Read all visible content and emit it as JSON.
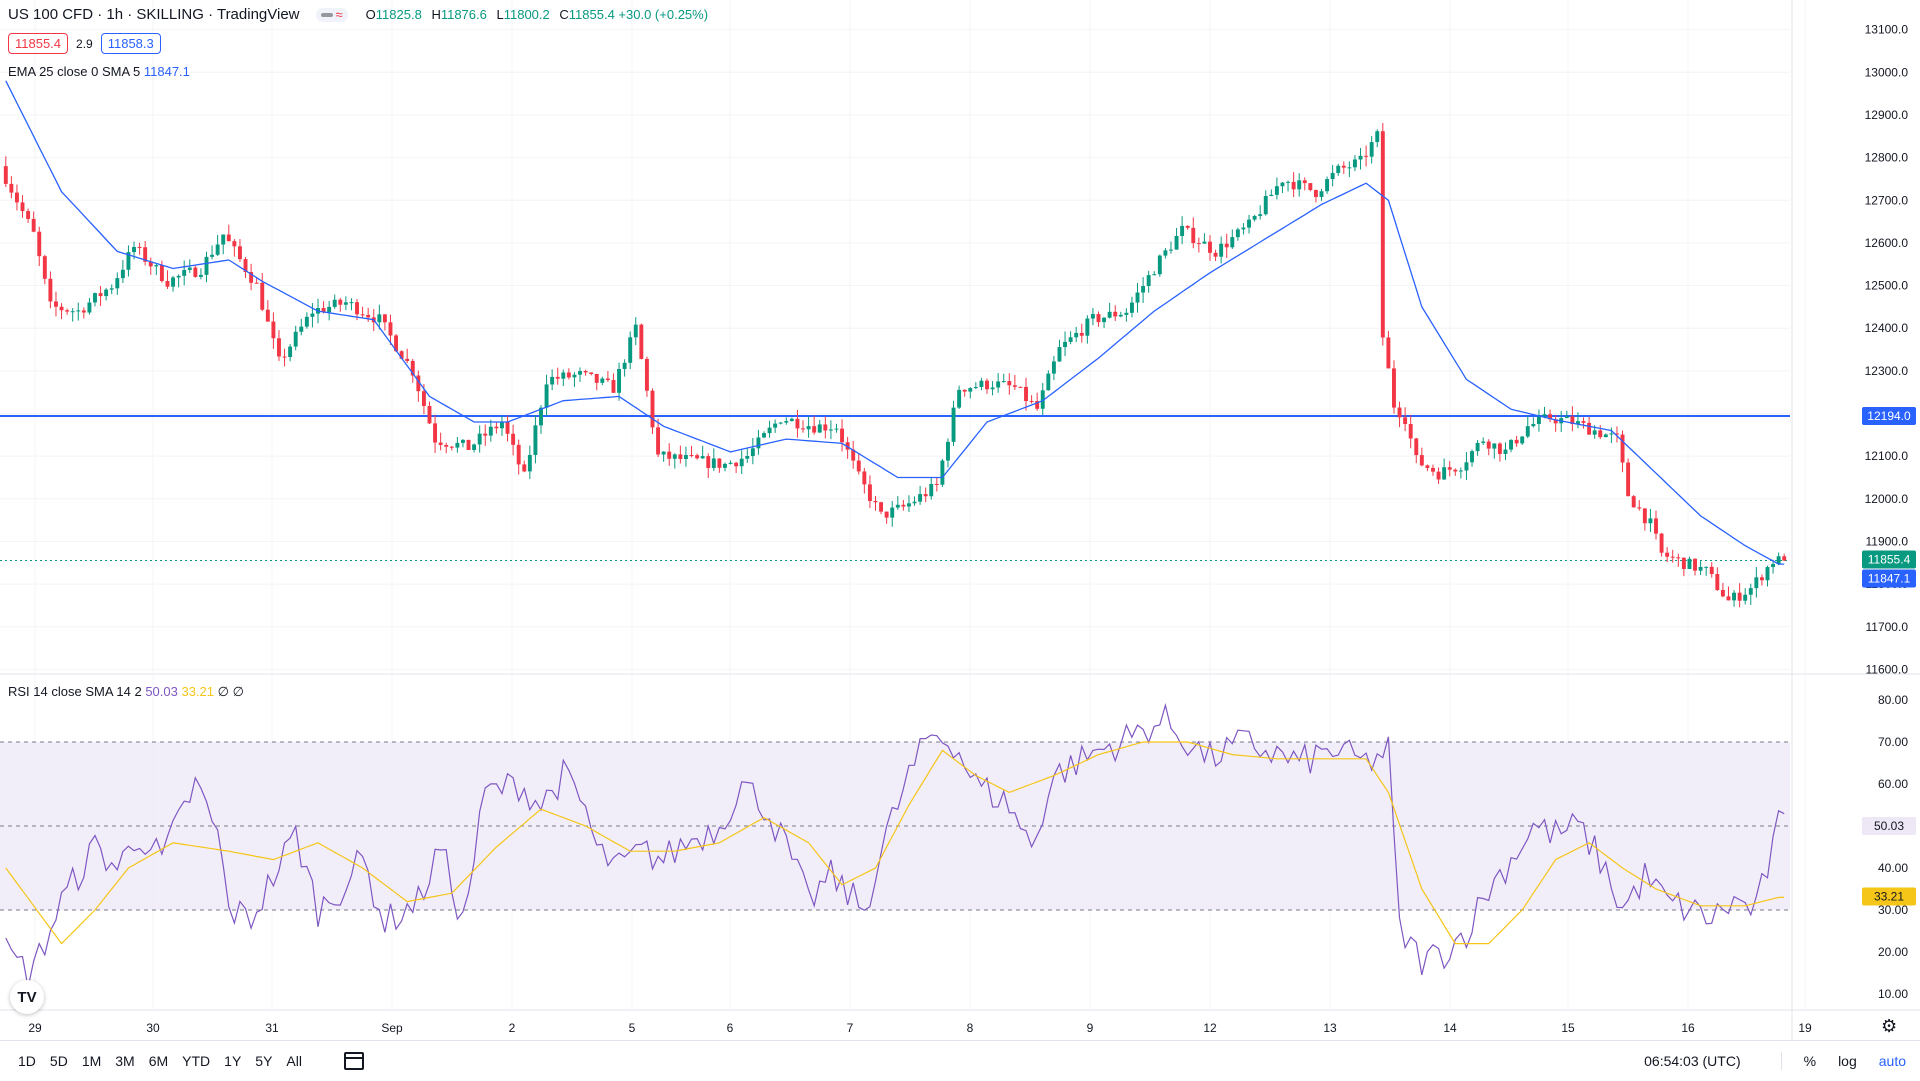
{
  "header": {
    "symbol": "US 100 CFD · 1h · SKILLING · TradingView",
    "pill_icon": "wave-icon",
    "pill_text": "≈",
    "ohlc": {
      "o_label": "O",
      "o": "11825.8",
      "h_label": "H",
      "h": "11876.6",
      "l_label": "L",
      "l": "11800.2",
      "c_label": "C",
      "c": "11855.4",
      "change": "+30.0 (+0.25%)"
    },
    "bid": "11855.4",
    "spread": "2.9",
    "ask": "11858.3"
  },
  "ema_legend": {
    "label": "EMA 25 close 0 SMA 5",
    "value": "11847.1"
  },
  "rsi_legend": {
    "label": "RSI 14 close SMA 14 2",
    "rsi_value": "50.03",
    "sma_value": "33.21",
    "extra1": "∅",
    "extra2": "∅"
  },
  "price_axis_labels": [
    "13100.0",
    "13000.0",
    "12900.0",
    "12800.0",
    "12700.0",
    "12600.0",
    "12500.0",
    "12400.0",
    "12300.0",
    "12200.0",
    "12100.0",
    "12000.0",
    "11900.0",
    "11800.0",
    "11700.0",
    "11600.0"
  ],
  "rsi_axis_labels": [
    "80.00",
    "70.00",
    "60.00",
    "50.00",
    "40.00",
    "30.00",
    "20.00",
    "10.00"
  ],
  "time_axis_labels": [
    "29",
    "30",
    "31",
    "Sep",
    "2",
    "5",
    "6",
    "7",
    "8",
    "9",
    "12",
    "13",
    "14",
    "15",
    "16",
    "19"
  ],
  "tags": {
    "horizontal_line": "12194.0",
    "last_price": "11855.4",
    "ema": "11847.1",
    "rsi": "50.03",
    "rsi_sma": "33.21"
  },
  "colors": {
    "up": "#089981",
    "down": "#f23645",
    "ema": "#2962ff",
    "hline": "#2962ff",
    "rsi": "#7e57c2",
    "rsi_sma": "#f5c518",
    "rsi_band": "#ede7f6"
  },
  "bottom_bar": {
    "timeframes": [
      "1D",
      "5D",
      "1M",
      "3M",
      "6M",
      "YTD",
      "1Y",
      "5Y",
      "All"
    ],
    "time": "06:54:03 (UTC)",
    "percent": "%",
    "log": "log",
    "auto": "auto"
  },
  "logo_text": "TV",
  "chart_data": [
    {
      "type": "candlestick",
      "title": "US 100 CFD · 1h · SKILLING",
      "ylim": [
        11560,
        13130
      ],
      "x_ticks": [
        "29",
        "30",
        "31",
        "Sep",
        "2",
        "5",
        "6",
        "7",
        "8",
        "9",
        "12",
        "13",
        "14",
        "15",
        "16",
        "19"
      ],
      "horizontal_line": 12194.0,
      "last_price": 11855.4,
      "anchors": [
        [
          0,
          12780
        ],
        [
          6,
          12620
        ],
        [
          9,
          12450
        ],
        [
          14,
          12440
        ],
        [
          20,
          12500
        ],
        [
          24,
          12590
        ],
        [
          30,
          12510
        ],
        [
          36,
          12540
        ],
        [
          40,
          12620
        ],
        [
          46,
          12500
        ],
        [
          50,
          12320
        ],
        [
          56,
          12440
        ],
        [
          62,
          12460
        ],
        [
          68,
          12420
        ],
        [
          74,
          12300
        ],
        [
          78,
          12140
        ],
        [
          84,
          12120
        ],
        [
          90,
          12180
        ],
        [
          94,
          12050
        ],
        [
          98,
          12280
        ],
        [
          104,
          12290
        ],
        [
          110,
          12260
        ],
        [
          114,
          12400
        ],
        [
          118,
          12100
        ],
        [
          124,
          12090
        ],
        [
          130,
          12080
        ],
        [
          134,
          12100
        ],
        [
          140,
          12190
        ],
        [
          146,
          12170
        ],
        [
          150,
          12170
        ],
        [
          154,
          12050
        ],
        [
          158,
          11960
        ],
        [
          162,
          11980
        ],
        [
          168,
          12030
        ],
        [
          172,
          12260
        ],
        [
          178,
          12270
        ],
        [
          182,
          12260
        ],
        [
          186,
          12210
        ],
        [
          190,
          12350
        ],
        [
          196,
          12420
        ],
        [
          202,
          12440
        ],
        [
          208,
          12560
        ],
        [
          212,
          12630
        ],
        [
          218,
          12580
        ],
        [
          224,
          12640
        ],
        [
          230,
          12750
        ],
        [
          236,
          12720
        ],
        [
          240,
          12770
        ],
        [
          244,
          12790
        ],
        [
          247,
          12850
        ],
        [
          248,
          12380
        ],
        [
          250,
          12220
        ],
        [
          252,
          12190
        ],
        [
          254,
          12090
        ],
        [
          258,
          12060
        ],
        [
          262,
          12080
        ],
        [
          266,
          12140
        ],
        [
          270,
          12110
        ],
        [
          274,
          12170
        ],
        [
          278,
          12190
        ],
        [
          282,
          12180
        ],
        [
          286,
          12160
        ],
        [
          290,
          12140
        ],
        [
          292,
          12010
        ],
        [
          296,
          11940
        ],
        [
          298,
          11870
        ],
        [
          302,
          11850
        ],
        [
          306,
          11830
        ],
        [
          310,
          11760
        ],
        [
          314,
          11790
        ],
        [
          318,
          11855
        ]
      ],
      "ema_anchors": [
        [
          0,
          12980
        ],
        [
          10,
          12720
        ],
        [
          20,
          12580
        ],
        [
          30,
          12540
        ],
        [
          40,
          12560
        ],
        [
          46,
          12510
        ],
        [
          56,
          12440
        ],
        [
          66,
          12420
        ],
        [
          76,
          12240
        ],
        [
          84,
          12180
        ],
        [
          90,
          12180
        ],
        [
          100,
          12230
        ],
        [
          110,
          12240
        ],
        [
          118,
          12170
        ],
        [
          130,
          12110
        ],
        [
          140,
          12140
        ],
        [
          150,
          12130
        ],
        [
          160,
          12050
        ],
        [
          168,
          12050
        ],
        [
          176,
          12180
        ],
        [
          186,
          12230
        ],
        [
          196,
          12330
        ],
        [
          206,
          12440
        ],
        [
          216,
          12530
        ],
        [
          226,
          12610
        ],
        [
          236,
          12690
        ],
        [
          244,
          12740
        ],
        [
          248,
          12700
        ],
        [
          254,
          12450
        ],
        [
          262,
          12280
        ],
        [
          270,
          12210
        ],
        [
          278,
          12185
        ],
        [
          288,
          12160
        ],
        [
          296,
          12060
        ],
        [
          304,
          11960
        ],
        [
          312,
          11890
        ],
        [
          318,
          11847
        ]
      ]
    },
    {
      "type": "line",
      "title": "RSI 14 close SMA 14 2",
      "ylim": [
        5,
        85
      ],
      "bands": [
        30,
        50,
        70
      ],
      "series": [
        {
          "name": "RSI",
          "anchors": [
            [
              0,
              20
            ],
            [
              4,
              15
            ],
            [
              6,
              19
            ],
            [
              10,
              32
            ],
            [
              16,
              45
            ],
            [
              20,
              40
            ],
            [
              24,
              48
            ],
            [
              28,
              42
            ],
            [
              34,
              60
            ],
            [
              38,
              48
            ],
            [
              40,
              30
            ],
            [
              44,
              28
            ],
            [
              48,
              38
            ],
            [
              52,
              48
            ],
            [
              56,
              30
            ],
            [
              60,
              35
            ],
            [
              64,
              42
            ],
            [
              68,
              27
            ],
            [
              74,
              32
            ],
            [
              78,
              45
            ],
            [
              82,
              27
            ],
            [
              86,
              58
            ],
            [
              92,
              60
            ],
            [
              96,
              55
            ],
            [
              100,
              62
            ],
            [
              104,
              54
            ],
            [
              106,
              44
            ],
            [
              110,
              40
            ],
            [
              114,
              44
            ],
            [
              118,
              42
            ],
            [
              122,
              46
            ],
            [
              128,
              50
            ],
            [
              132,
              60
            ],
            [
              136,
              55
            ],
            [
              140,
              45
            ],
            [
              144,
              32
            ],
            [
              148,
              38
            ],
            [
              154,
              30
            ],
            [
              158,
              48
            ],
            [
              162,
              62
            ],
            [
              166,
              72
            ],
            [
              170,
              70
            ],
            [
              174,
              60
            ],
            [
              180,
              55
            ],
            [
              184,
              45
            ],
            [
              188,
              62
            ],
            [
              192,
              65
            ],
            [
              196,
              68
            ],
            [
              200,
              70
            ],
            [
              204,
              73
            ],
            [
              208,
              75
            ],
            [
              212,
              70
            ],
            [
              216,
              66
            ],
            [
              222,
              70
            ],
            [
              226,
              68
            ],
            [
              232,
              65
            ],
            [
              238,
              68
            ],
            [
              244,
              65
            ],
            [
              248,
              68
            ],
            [
              250,
              25
            ],
            [
              254,
              18
            ],
            [
              258,
              20
            ],
            [
              262,
              25
            ],
            [
              266,
              35
            ],
            [
              270,
              42
            ],
            [
              274,
              50
            ],
            [
              278,
              48
            ],
            [
              282,
              50
            ],
            [
              286,
              42
            ],
            [
              290,
              30
            ],
            [
              294,
              38
            ],
            [
              298,
              32
            ],
            [
              302,
              30
            ],
            [
              306,
              28
            ],
            [
              310,
              32
            ],
            [
              314,
              30
            ],
            [
              318,
              50
            ]
          ]
        },
        {
          "name": "RSI-based MA",
          "anchors": [
            [
              0,
              40
            ],
            [
              10,
              22
            ],
            [
              16,
              30
            ],
            [
              22,
              40
            ],
            [
              30,
              46
            ],
            [
              40,
              44
            ],
            [
              48,
              42
            ],
            [
              56,
              46
            ],
            [
              64,
              40
            ],
            [
              72,
              32
            ],
            [
              80,
              34
            ],
            [
              88,
              45
            ],
            [
              96,
              54
            ],
            [
              104,
              50
            ],
            [
              112,
              44
            ],
            [
              120,
              44
            ],
            [
              128,
              46
            ],
            [
              136,
              52
            ],
            [
              144,
              46
            ],
            [
              150,
              36
            ],
            [
              156,
              40
            ],
            [
              162,
              55
            ],
            [
              168,
              68
            ],
            [
              174,
              62
            ],
            [
              180,
              58
            ],
            [
              188,
              62
            ],
            [
              196,
              67
            ],
            [
              204,
              70
            ],
            [
              212,
              70
            ],
            [
              220,
              67
            ],
            [
              228,
              66
            ],
            [
              236,
              66
            ],
            [
              244,
              66
            ],
            [
              248,
              58
            ],
            [
              254,
              35
            ],
            [
              260,
              22
            ],
            [
              266,
              22
            ],
            [
              272,
              30
            ],
            [
              278,
              42
            ],
            [
              284,
              46
            ],
            [
              290,
              40
            ],
            [
              296,
              35
            ],
            [
              304,
              31
            ],
            [
              312,
              31
            ],
            [
              318,
              33
            ]
          ]
        }
      ]
    }
  ]
}
